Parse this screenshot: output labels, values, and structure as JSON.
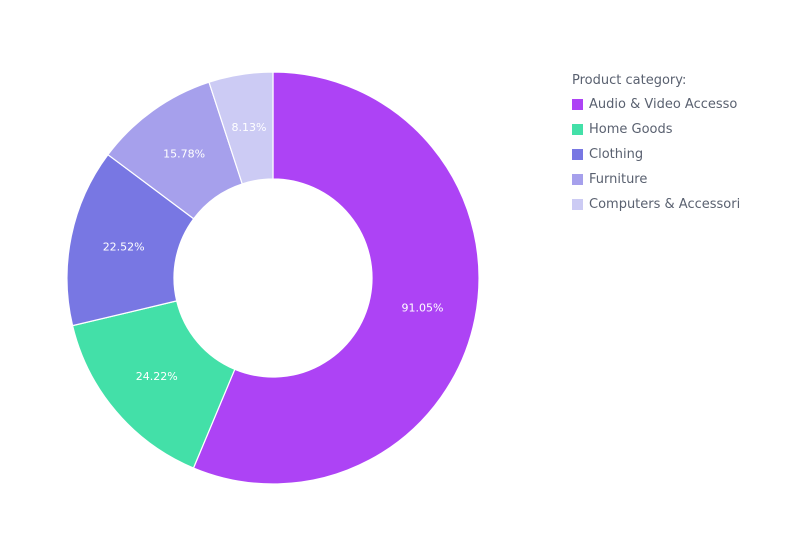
{
  "chart_data": {
    "type": "pie",
    "hole": true,
    "legend": {
      "title": "Product category:",
      "position": "right"
    },
    "slices": [
      {
        "name": "Audio & Video Accesso",
        "value": 91.05,
        "label": "91.05%",
        "color": "#ad43f5"
      },
      {
        "name": "Home Goods",
        "value": 24.22,
        "label": "24.22%",
        "color": "#43e0a8"
      },
      {
        "name": "Clothing",
        "value": 22.52,
        "label": "22.52%",
        "color": "#7877e3"
      },
      {
        "name": "Furniture",
        "value": 15.78,
        "label": "15.78%",
        "color": "#a6a0ec"
      },
      {
        "name": "Computers & Accessori",
        "value": 8.13,
        "label": "8.13%",
        "color": "#cccbf4"
      }
    ]
  }
}
